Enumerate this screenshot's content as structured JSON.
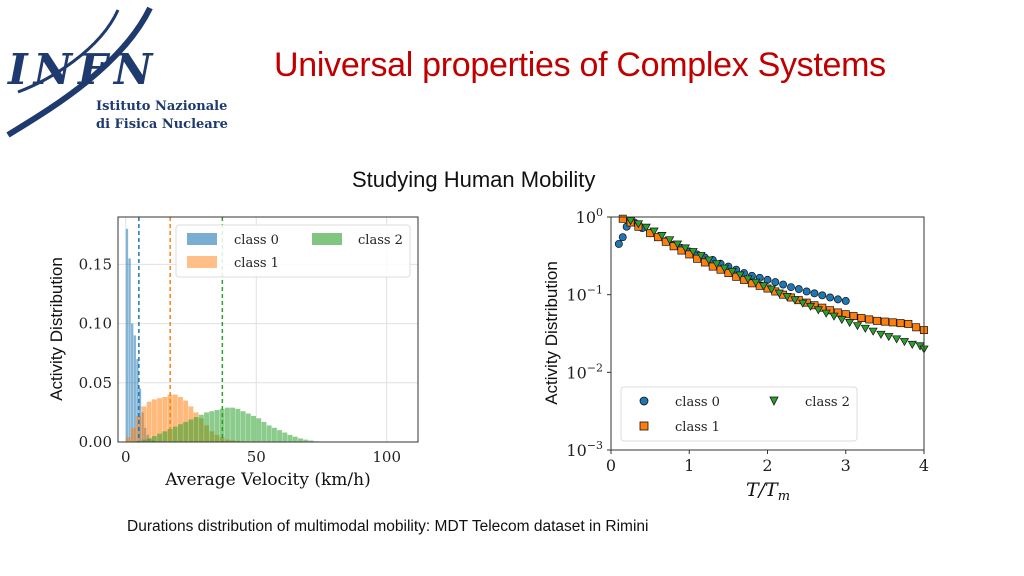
{
  "header": {
    "title": "Universal properties of Complex Systems",
    "logo_text": "INFN",
    "logo_sub1": "Istituto Nazionale",
    "logo_sub2": "di Fisica Nucleare"
  },
  "subtitle": "Studying Human Mobility",
  "caption": "Durations distribution of multimodal mobility: MDT Telecom dataset in Rimini",
  "colors": {
    "title": "#c00000",
    "class0": "#1f77b4",
    "class1": "#ff7f0e",
    "class2": "#2ca02c"
  },
  "chart_data": [
    {
      "type": "bar",
      "title": "",
      "xlabel": "Average Velocity (km/h)",
      "ylabel": "Activity Distribution",
      "xlim": [
        -3,
        112
      ],
      "ylim": [
        0,
        0.19
      ],
      "xticks": [
        "0",
        "50",
        "100"
      ],
      "yticks": [
        "0.00",
        "0.05",
        "0.10",
        "0.15"
      ],
      "grid": true,
      "legend_position": "top-right",
      "series": [
        {
          "name": "class 0",
          "mean_line": 5,
          "x": [
            0.5,
            1.5,
            2.5,
            3.5,
            4.5,
            5.5,
            6.5,
            7.5,
            8.5,
            9.5,
            10.5,
            11.5
          ],
          "values": [
            0.18,
            0.155,
            0.1,
            0.09,
            0.07,
            0.045,
            0.025,
            0.012,
            0.006,
            0.003,
            0.0015,
            0.0007
          ]
        },
        {
          "name": "class 1",
          "mean_line": 17,
          "x": [
            1,
            3,
            5,
            7,
            9,
            11,
            13,
            15,
            17,
            19,
            21,
            23,
            25,
            27,
            29,
            31,
            33,
            35,
            37,
            39,
            41,
            43,
            45
          ],
          "values": [
            0.004,
            0.012,
            0.022,
            0.03,
            0.034,
            0.036,
            0.037,
            0.038,
            0.04,
            0.04,
            0.038,
            0.035,
            0.03,
            0.025,
            0.02,
            0.014,
            0.009,
            0.006,
            0.004,
            0.002,
            0.0015,
            0.001,
            0.0005
          ]
        },
        {
          "name": "class 2",
          "mean_line": 37,
          "x": [
            5,
            7,
            9,
            11,
            13,
            15,
            17,
            19,
            21,
            23,
            25,
            27,
            29,
            31,
            33,
            35,
            37,
            39,
            41,
            43,
            45,
            47,
            49,
            51,
            53,
            55,
            57,
            59,
            61,
            63,
            65,
            67,
            69,
            71,
            73
          ],
          "values": [
            0.001,
            0.002,
            0.003,
            0.005,
            0.007,
            0.009,
            0.011,
            0.013,
            0.015,
            0.017,
            0.019,
            0.021,
            0.023,
            0.025,
            0.026,
            0.027,
            0.028,
            0.029,
            0.029,
            0.028,
            0.026,
            0.024,
            0.022,
            0.02,
            0.017,
            0.014,
            0.012,
            0.01,
            0.008,
            0.006,
            0.0045,
            0.003,
            0.002,
            0.0012,
            0.0006
          ]
        }
      ]
    },
    {
      "type": "scatter",
      "title": "",
      "xlabel": "T/T_m",
      "ylabel": "Activity Distribution",
      "xlim": [
        0,
        4
      ],
      "ylim": [
        0.001,
        1
      ],
      "yscale": "log",
      "xticks": [
        "0",
        "1",
        "2",
        "3",
        "4"
      ],
      "yticks": [
        "10^0",
        "10^-1",
        "10^-2",
        "10^-3"
      ],
      "grid": false,
      "legend_position": "lower-left",
      "series": [
        {
          "name": "class 0",
          "marker": "circle",
          "x": [
            0.1,
            0.15,
            0.2,
            0.25,
            0.3,
            0.35,
            0.4,
            0.5,
            0.6,
            0.7,
            0.8,
            0.9,
            1.0,
            1.1,
            1.2,
            1.3,
            1.4,
            1.5,
            1.6,
            1.7,
            1.8,
            1.9,
            2.0,
            2.1,
            2.2,
            2.3,
            2.4,
            2.5,
            2.6,
            2.7,
            2.8,
            2.9,
            3.0
          ],
          "values": [
            0.45,
            0.55,
            0.75,
            0.9,
            0.85,
            0.78,
            0.72,
            0.62,
            0.55,
            0.49,
            0.44,
            0.4,
            0.36,
            0.33,
            0.3,
            0.28,
            0.25,
            0.23,
            0.21,
            0.19,
            0.175,
            0.165,
            0.155,
            0.145,
            0.135,
            0.125,
            0.118,
            0.11,
            0.104,
            0.098,
            0.092,
            0.087,
            0.083
          ]
        },
        {
          "name": "class 1",
          "marker": "square",
          "x": [
            0.15,
            0.25,
            0.35,
            0.5,
            0.6,
            0.7,
            0.8,
            0.9,
            1.0,
            1.1,
            1.2,
            1.3,
            1.4,
            1.5,
            1.6,
            1.7,
            1.8,
            1.9,
            2.0,
            2.1,
            2.2,
            2.3,
            2.4,
            2.5,
            2.6,
            2.7,
            2.8,
            2.9,
            3.0,
            3.1,
            3.2,
            3.3,
            3.4,
            3.5,
            3.6,
            3.7,
            3.8,
            3.9,
            4.0
          ],
          "values": [
            0.95,
            0.85,
            0.75,
            0.62,
            0.55,
            0.48,
            0.42,
            0.37,
            0.33,
            0.29,
            0.26,
            0.23,
            0.21,
            0.19,
            0.17,
            0.155,
            0.14,
            0.13,
            0.12,
            0.11,
            0.1,
            0.092,
            0.085,
            0.079,
            0.073,
            0.068,
            0.063,
            0.059,
            0.056,
            0.053,
            0.05,
            0.048,
            0.046,
            0.045,
            0.044,
            0.043,
            0.042,
            0.038,
            0.035
          ]
        },
        {
          "name": "class 2",
          "marker": "triangle-down",
          "x": [
            0.25,
            0.35,
            0.45,
            0.55,
            0.65,
            0.75,
            0.85,
            0.95,
            1.05,
            1.15,
            1.25,
            1.35,
            1.45,
            1.55,
            1.65,
            1.75,
            1.85,
            1.95,
            2.05,
            2.15,
            2.25,
            2.35,
            2.45,
            2.55,
            2.65,
            2.75,
            2.85,
            2.95,
            3.05,
            3.15,
            3.25,
            3.35,
            3.45,
            3.55,
            3.65,
            3.75,
            3.85,
            3.95,
            4.0
          ],
          "values": [
            0.9,
            0.82,
            0.74,
            0.66,
            0.58,
            0.51,
            0.45,
            0.4,
            0.36,
            0.32,
            0.28,
            0.25,
            0.22,
            0.2,
            0.18,
            0.16,
            0.145,
            0.13,
            0.118,
            0.105,
            0.095,
            0.086,
            0.078,
            0.071,
            0.064,
            0.058,
            0.053,
            0.048,
            0.044,
            0.04,
            0.037,
            0.034,
            0.031,
            0.029,
            0.027,
            0.025,
            0.023,
            0.022,
            0.02
          ]
        }
      ]
    }
  ]
}
